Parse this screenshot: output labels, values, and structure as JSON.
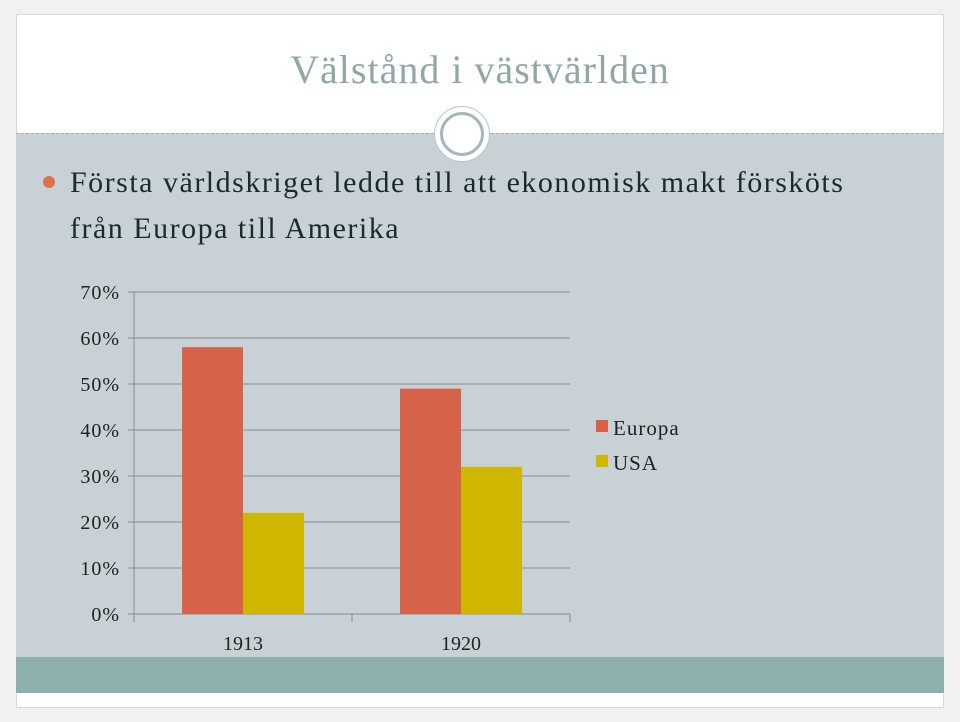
{
  "slide": {
    "title": "Välstånd i västvärlden",
    "bullet": "Första världskriget ledde till att ekonomisk makt försköts från Europa till Amerika"
  },
  "chart_data": {
    "type": "bar",
    "categories": [
      "1913",
      "1920"
    ],
    "series": [
      {
        "name": "Europa",
        "values": [
          58,
          49
        ],
        "color": "#d6624a"
      },
      {
        "name": "USA",
        "values": [
          22,
          32
        ],
        "color": "#cfb600"
      }
    ],
    "ylim": [
      0,
      70
    ],
    "yticks": [
      0,
      10,
      20,
      30,
      40,
      50,
      60,
      70
    ],
    "ytick_labels": [
      "0%",
      "10%",
      "20%",
      "30%",
      "40%",
      "50%",
      "60%",
      "70%"
    ],
    "grid": true,
    "legend": "right"
  }
}
